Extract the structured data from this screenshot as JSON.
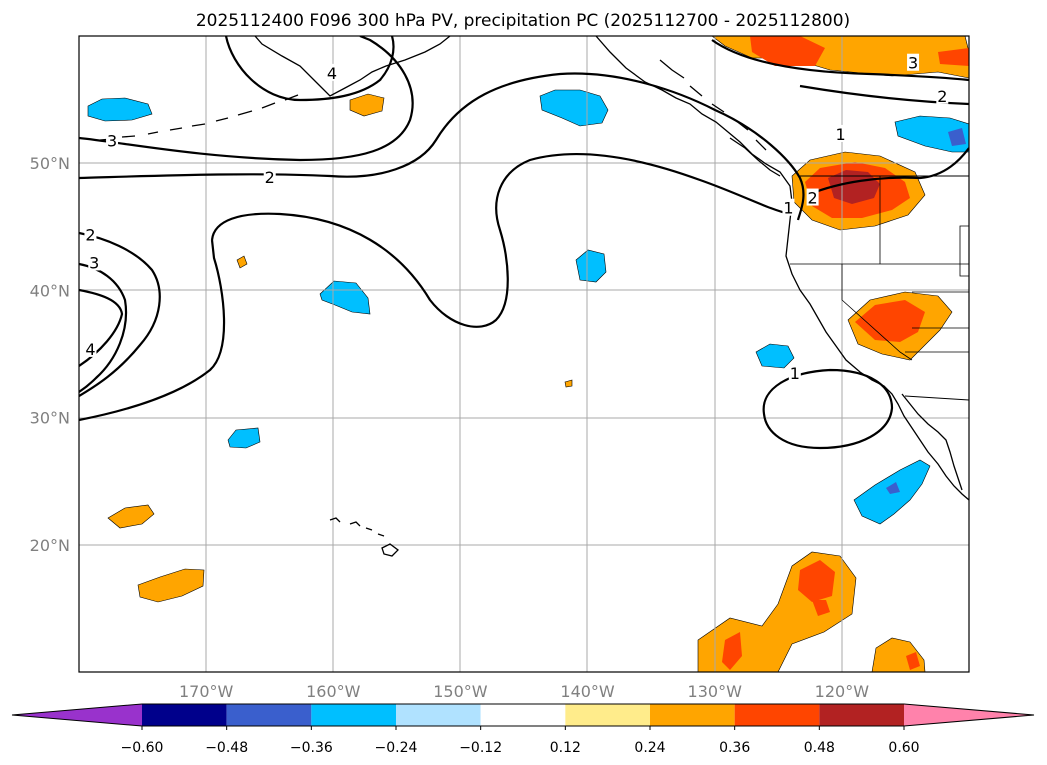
{
  "chart_data": {
    "type": "map",
    "title": "2025112400 F096 300 hPa PV, precipitation PC (2025112700 - 2025112800)",
    "lon_range": [
      -180,
      -110
    ],
    "lat_range": [
      10,
      60
    ],
    "grid": true,
    "xticks": [
      {
        "lon": -170,
        "label": "170°W"
      },
      {
        "lon": -160,
        "label": "160°W"
      },
      {
        "lon": -150,
        "label": "150°W"
      },
      {
        "lon": -140,
        "label": "140°W"
      },
      {
        "lon": -130,
        "label": "130°W"
      },
      {
        "lon": -120,
        "label": "120°W"
      }
    ],
    "yticks": [
      {
        "lat": 50,
        "label": "50°N"
      },
      {
        "lat": 40,
        "label": "40°N"
      },
      {
        "lat": 30,
        "label": "30°N"
      },
      {
        "lat": 20,
        "label": "20°N"
      }
    ],
    "colorbar": {
      "extend": "both",
      "boundaries": [
        -0.72,
        -0.6,
        -0.48,
        -0.36,
        -0.24,
        -0.12,
        0.12,
        0.24,
        0.36,
        0.48,
        0.6,
        0.72
      ],
      "colors": [
        "#9932cc",
        "#00008b",
        "#3a5fcd",
        "#00bfff",
        "#b0e2ff",
        "#ffffff",
        "#ffec8b",
        "#ffa500",
        "#ff4500",
        "#b22222",
        "#ff82ab"
      ],
      "tick_labels": [
        {
          "value": -0.6,
          "label": "−0.60"
        },
        {
          "value": -0.48,
          "label": "−0.48"
        },
        {
          "value": -0.36,
          "label": "−0.36"
        },
        {
          "value": -0.24,
          "label": "−0.24"
        },
        {
          "value": -0.12,
          "label": "−0.12"
        },
        {
          "value": 0.12,
          "label": "0.12"
        },
        {
          "value": 0.24,
          "label": "0.24"
        },
        {
          "value": 0.36,
          "label": "0.36"
        },
        {
          "value": 0.48,
          "label": "0.48"
        },
        {
          "value": 0.6,
          "label": "0.60"
        }
      ]
    },
    "pv_contour_labels": [
      {
        "text": "3",
        "lon": -177.4,
        "lat": 51.8
      },
      {
        "text": "2",
        "lon": -165.0,
        "lat": 48.9
      },
      {
        "text": "2",
        "lon": -179.1,
        "lat": 44.4
      },
      {
        "text": "3",
        "lon": -178.8,
        "lat": 42.2
      },
      {
        "text": "4",
        "lon": -179.1,
        "lat": 35.4
      },
      {
        "text": "4",
        "lon": -160.1,
        "lat": 57.1
      },
      {
        "text": "3",
        "lon": -114.4,
        "lat": 57.9
      },
      {
        "text": "2",
        "lon": -112.1,
        "lat": 55.3
      },
      {
        "text": "1",
        "lon": -120.1,
        "lat": 52.3
      },
      {
        "text": "2",
        "lon": -122.3,
        "lat": 47.3
      },
      {
        "text": "1",
        "lon": -124.2,
        "lat": 46.5
      },
      {
        "text": "1",
        "lon": -123.7,
        "lat": 33.5
      }
    ]
  }
}
